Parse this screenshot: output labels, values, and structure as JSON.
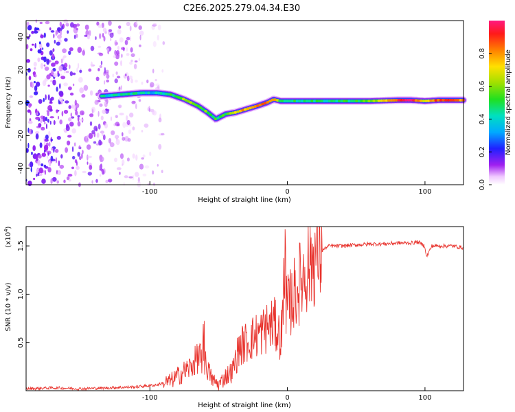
{
  "title": "C2E6.2025.279.04.34.E30",
  "chart_data": [
    {
      "type": "heatmap",
      "xlabel": "Height of straight line (km)",
      "ylabel": "Frequency (Hz)",
      "xlim": [
        -190,
        128
      ],
      "ylim": [
        -50,
        50
      ],
      "xticks": [
        -100,
        0,
        100
      ],
      "xtick_labels": [
        "-100",
        "0",
        "100"
      ],
      "yticks": [
        -40,
        -20,
        0,
        20,
        40
      ],
      "ytick_labels": [
        "-40",
        "-20",
        "0",
        "20",
        "40"
      ],
      "colorbar": {
        "label": "Normalized spectral amplitude",
        "range": [
          0,
          1
        ],
        "ticks": [
          0.0,
          0.2,
          0.4,
          0.6,
          0.8
        ],
        "tick_labels": [
          "0.0",
          "0.2",
          "0.4",
          "0.6",
          "0.8"
        ]
      },
      "ridge": {
        "x": [
          -135,
          -120,
          -105,
          -95,
          -85,
          -75,
          -65,
          -58,
          -52,
          -45,
          -38,
          -30,
          -22,
          -15,
          -10,
          -5,
          0,
          10,
          30,
          60,
          80,
          90,
          100,
          110,
          128
        ],
        "freq": [
          4,
          5,
          6,
          6,
          5,
          2,
          -2,
          -6,
          -10,
          -7,
          -6,
          -4,
          -2,
          0,
          2,
          1,
          1,
          1,
          1,
          1,
          1.5,
          1.5,
          1,
          1.5,
          1.5
        ],
        "amplitude": [
          0.4,
          0.45,
          0.4,
          0.35,
          0.5,
          0.6,
          0.6,
          0.55,
          0.5,
          0.55,
          0.65,
          0.8,
          0.85,
          0.85,
          0.8,
          0.5,
          0.5,
          0.45,
          0.45,
          0.55,
          0.9,
          0.95,
          0.7,
          0.9,
          0.8
        ]
      },
      "noise_region": [
        -190,
        -90
      ]
    },
    {
      "type": "line",
      "xlabel": "Height of straight line (km)",
      "ylabel": "SNR (10 * v/v)",
      "yscale_label": "(x10",
      "yscale_exp": "4",
      "yscale_close": ")",
      "xlim": [
        -190,
        128
      ],
      "ylim": [
        0,
        1.7
      ],
      "xticks": [
        -100,
        0,
        100
      ],
      "xtick_labels": [
        "-100",
        "0",
        "100"
      ],
      "yticks": [
        0.5,
        1.0,
        1.5
      ],
      "ytick_labels": [
        "0.5",
        "1.0",
        "1.5"
      ],
      "color": "#e8322c",
      "series": [
        {
          "name": "SNR",
          "x": [
            -190,
            -170,
            -150,
            -130,
            -110,
            -95,
            -85,
            -80,
            -75,
            -70,
            -65,
            -60,
            -55,
            -50,
            -45,
            -40,
            -35,
            -30,
            -25,
            -20,
            -15,
            -10,
            -5,
            -2,
            0,
            5,
            10,
            15,
            20,
            25,
            30,
            40,
            50,
            60,
            70,
            80,
            90,
            95,
            100,
            101,
            105,
            110,
            120,
            128
          ],
          "y": [
            0.02,
            0.03,
            0.02,
            0.03,
            0.04,
            0.06,
            0.1,
            0.15,
            0.2,
            0.25,
            0.35,
            0.3,
            0.12,
            0.06,
            0.15,
            0.2,
            0.45,
            0.5,
            0.55,
            0.6,
            0.65,
            0.7,
            0.55,
            0.9,
            0.85,
            1.0,
            1.15,
            1.3,
            1.4,
            1.45,
            1.5,
            1.5,
            1.51,
            1.52,
            1.52,
            1.53,
            1.53,
            1.54,
            1.5,
            1.38,
            1.5,
            1.5,
            1.5,
            1.48
          ]
        }
      ]
    }
  ]
}
